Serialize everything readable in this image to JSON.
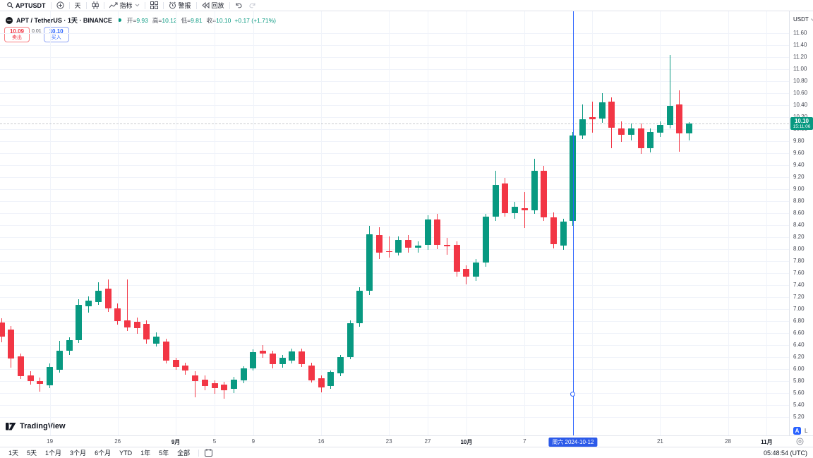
{
  "topbar": {
    "symbol": "APTUSDT",
    "interval": "天",
    "indicators_label": "指标",
    "alert_label": "警报",
    "replay_label": "回放"
  },
  "legend": {
    "title": "APT / TetherUS · 1天 · BINANCE",
    "ohlc": [
      {
        "label": "开=",
        "value": "9.93"
      },
      {
        "label": "高=",
        "value": "10.12"
      },
      {
        "label": "低=",
        "value": "9.81"
      },
      {
        "label": "收=",
        "value": "10.10"
      }
    ],
    "change": "+0.17 (+1.71%)"
  },
  "trade": {
    "sell_price": "10.09",
    "sell_label": "卖出",
    "spread": "0.01",
    "buy_price": "10.10",
    "buy_label": "买入"
  },
  "price_axis": {
    "currency": "USDT",
    "last_price": "10.10",
    "countdown": "15:11:06",
    "auto": "A",
    "log": "L"
  },
  "time_axis": {
    "crosshair_label": "周六 2024-10-12",
    "ticks": [
      {
        "label": "19",
        "i": 5,
        "bold": false
      },
      {
        "label": "26",
        "i": 12,
        "bold": false
      },
      {
        "label": "9月",
        "i": 18,
        "bold": true
      },
      {
        "label": "5",
        "i": 22,
        "bold": false
      },
      {
        "label": "9",
        "i": 26,
        "bold": false
      },
      {
        "label": "16",
        "i": 33,
        "bold": false
      },
      {
        "label": "23",
        "i": 40,
        "bold": false
      },
      {
        "label": "27",
        "i": 44,
        "bold": false
      },
      {
        "label": "10月",
        "i": 48,
        "bold": true
      },
      {
        "label": "7",
        "i": 54,
        "bold": false
      },
      {
        "label": "14",
        "i": 61,
        "bold": false
      },
      {
        "label": "21",
        "i": 68,
        "bold": false
      },
      {
        "label": "28",
        "i": 75,
        "bold": false
      },
      {
        "label": "11月",
        "i": 79,
        "bold": true
      }
    ]
  },
  "bottom": {
    "ranges": [
      "1天",
      "5天",
      "1个月",
      "3个月",
      "6个月",
      "YTD",
      "1年",
      "5年",
      "全部"
    ],
    "clock": "05:48:54 (UTC)"
  },
  "logo": "TradingView",
  "colors": {
    "up": "#089981",
    "down": "#f23645",
    "accent": "#2962ff",
    "badge": "#089981"
  },
  "chart_data": {
    "type": "candlestick",
    "symbol": "APT/TetherUS",
    "exchange": "BINANCE",
    "interval": "1天",
    "ylim": [
      5.2,
      11.6
    ],
    "ystep": 0.2,
    "last_close": 10.1,
    "crosshair": {
      "index": 59,
      "date": "2024-10-12",
      "label": "周六 2024-10-12"
    },
    "columns": [
      "date",
      "open",
      "high",
      "low",
      "close"
    ],
    "candles": [
      [
        "2024-08-14",
        6.78,
        6.85,
        6.45,
        6.54
      ],
      [
        "2024-08-15",
        6.66,
        6.72,
        6.02,
        6.18
      ],
      [
        "2024-08-16",
        6.21,
        6.26,
        5.84,
        5.88
      ],
      [
        "2024-08-17",
        5.89,
        5.96,
        5.74,
        5.8
      ],
      [
        "2024-08-18",
        5.8,
        5.86,
        5.62,
        5.75
      ],
      [
        "2024-08-19",
        5.73,
        6.1,
        5.68,
        6.04
      ],
      [
        "2024-08-20",
        5.99,
        6.47,
        5.94,
        6.31
      ],
      [
        "2024-08-21",
        6.3,
        6.53,
        6.23,
        6.48
      ],
      [
        "2024-08-22",
        6.48,
        7.16,
        6.44,
        7.07
      ],
      [
        "2024-08-23",
        7.05,
        7.21,
        6.94,
        7.14
      ],
      [
        "2024-08-24",
        7.12,
        7.45,
        7.07,
        7.31
      ],
      [
        "2024-08-25",
        7.34,
        7.5,
        6.95,
        7.01
      ],
      [
        "2024-08-26",
        7.01,
        7.09,
        6.74,
        6.8
      ],
      [
        "2024-08-27",
        6.81,
        7.49,
        6.64,
        6.69
      ],
      [
        "2024-08-28",
        6.79,
        6.86,
        6.59,
        6.68
      ],
      [
        "2024-08-29",
        6.75,
        6.81,
        6.42,
        6.49
      ],
      [
        "2024-08-30",
        6.42,
        6.61,
        6.37,
        6.54
      ],
      [
        "2024-08-31",
        6.46,
        6.51,
        6.09,
        6.14
      ],
      [
        "2024-09-01",
        6.15,
        6.19,
        5.99,
        6.03
      ],
      [
        "2024-09-02",
        6.06,
        6.11,
        5.91,
        5.98
      ],
      [
        "2024-09-03",
        5.89,
        5.96,
        5.53,
        5.8
      ],
      [
        "2024-09-04",
        5.82,
        5.89,
        5.65,
        5.72
      ],
      [
        "2024-09-05",
        5.76,
        5.81,
        5.59,
        5.68
      ],
      [
        "2024-09-06",
        5.74,
        5.79,
        5.51,
        5.65
      ],
      [
        "2024-09-07",
        5.67,
        5.87,
        5.6,
        5.83
      ],
      [
        "2024-09-08",
        5.81,
        6.05,
        5.77,
        6.01
      ],
      [
        "2024-09-09",
        6.01,
        6.33,
        5.97,
        6.28
      ],
      [
        "2024-09-10",
        6.31,
        6.4,
        6.19,
        6.26
      ],
      [
        "2024-09-11",
        6.26,
        6.31,
        6.01,
        6.08
      ],
      [
        "2024-09-12",
        6.08,
        6.23,
        6.02,
        6.19
      ],
      [
        "2024-09-13",
        6.14,
        6.34,
        6.09,
        6.3
      ],
      [
        "2024-09-14",
        6.29,
        6.34,
        6.03,
        6.08
      ],
      [
        "2024-09-15",
        6.06,
        6.11,
        5.77,
        5.81
      ],
      [
        "2024-09-16",
        5.85,
        5.89,
        5.61,
        5.69
      ],
      [
        "2024-09-17",
        5.72,
        5.98,
        5.67,
        5.95
      ],
      [
        "2024-09-18",
        5.93,
        6.24,
        5.88,
        6.2
      ],
      [
        "2024-09-19",
        6.2,
        6.81,
        6.16,
        6.76
      ],
      [
        "2024-09-20",
        6.76,
        7.36,
        6.71,
        7.31
      ],
      [
        "2024-09-21",
        7.31,
        8.39,
        7.24,
        8.25
      ],
      [
        "2024-09-22",
        8.23,
        8.36,
        7.84,
        7.94
      ],
      [
        "2024-09-23",
        7.97,
        8.21,
        7.86,
        7.96
      ],
      [
        "2024-09-24",
        7.94,
        8.21,
        7.89,
        8.15
      ],
      [
        "2024-09-25",
        8.15,
        8.23,
        7.94,
        8.02
      ],
      [
        "2024-09-26",
        8.02,
        8.13,
        7.94,
        8.06
      ],
      [
        "2024-09-27",
        8.07,
        8.56,
        7.99,
        8.5
      ],
      [
        "2024-09-28",
        8.5,
        8.59,
        8.0,
        8.07
      ],
      [
        "2024-09-29",
        8.07,
        8.19,
        7.91,
        8.05
      ],
      [
        "2024-09-30",
        8.07,
        8.13,
        7.54,
        7.62
      ],
      [
        "2024-10-01",
        7.67,
        7.73,
        7.41,
        7.54
      ],
      [
        "2024-10-02",
        7.54,
        7.83,
        7.47,
        7.78
      ],
      [
        "2024-10-03",
        7.78,
        8.59,
        7.71,
        8.54
      ],
      [
        "2024-10-04",
        8.54,
        9.31,
        8.47,
        9.07
      ],
      [
        "2024-10-05",
        9.09,
        9.19,
        8.54,
        8.6
      ],
      [
        "2024-10-06",
        8.6,
        8.79,
        8.51,
        8.71
      ],
      [
        "2024-10-07",
        8.68,
        8.95,
        8.35,
        8.65
      ],
      [
        "2024-10-08",
        8.65,
        9.51,
        8.59,
        9.31
      ],
      [
        "2024-10-09",
        9.31,
        9.39,
        8.47,
        8.53
      ],
      [
        "2024-10-10",
        8.53,
        8.61,
        8.01,
        8.08
      ],
      [
        "2024-10-11",
        8.06,
        8.51,
        7.99,
        8.46
      ],
      [
        "2024-10-12",
        8.47,
        9.95,
        8.39,
        9.89
      ],
      [
        "2024-10-13",
        9.89,
        10.41,
        9.84,
        10.17
      ],
      [
        "2024-10-14",
        10.2,
        10.46,
        9.94,
        10.17
      ],
      [
        "2024-10-15",
        10.18,
        10.6,
        10.11,
        10.45
      ],
      [
        "2024-10-16",
        10.46,
        10.53,
        9.68,
        10.02
      ],
      [
        "2024-10-17",
        10.01,
        10.13,
        9.79,
        9.9
      ],
      [
        "2024-10-18",
        9.9,
        10.09,
        9.81,
        10.01
      ],
      [
        "2024-10-19",
        10.01,
        10.09,
        9.59,
        9.68
      ],
      [
        "2024-10-20",
        9.68,
        10.01,
        9.61,
        9.95
      ],
      [
        "2024-10-21",
        9.94,
        10.13,
        9.87,
        10.07
      ],
      [
        "2024-10-22",
        10.07,
        11.24,
        10.01,
        10.39
      ],
      [
        "2024-10-23",
        10.41,
        10.65,
        9.62,
        9.93
      ],
      [
        "2024-10-24",
        9.93,
        10.12,
        9.81,
        10.1
      ]
    ]
  }
}
